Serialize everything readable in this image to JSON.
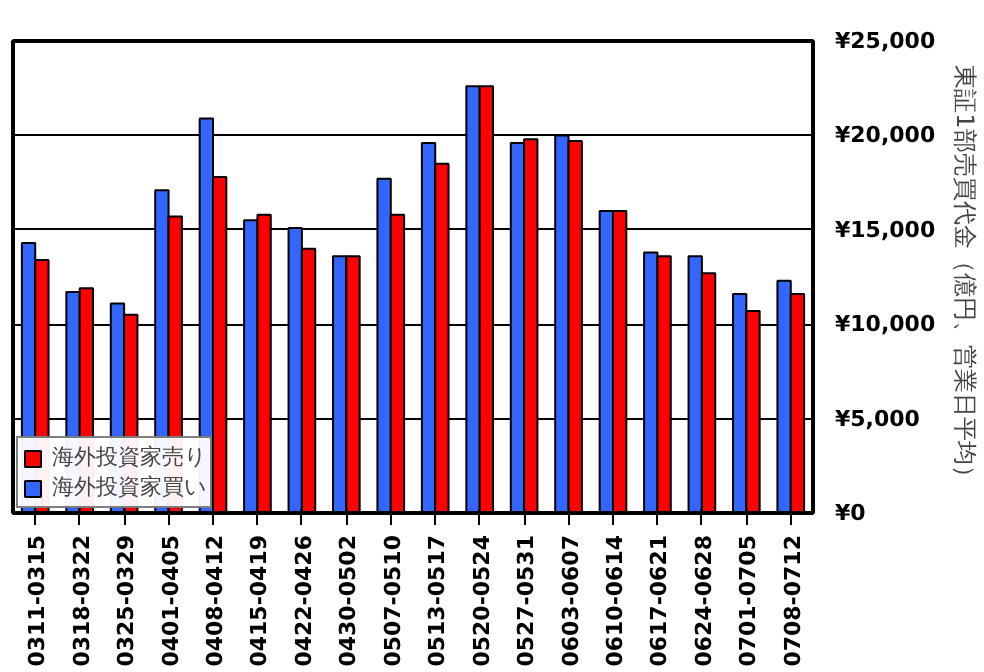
{
  "chart_data": {
    "type": "bar",
    "ylabel": "東証1部売買代金（億円、営業日平均）",
    "categories": [
      "0311-0315",
      "0318-0322",
      "0325-0329",
      "0401-0405",
      "0408-0412",
      "0415-0419",
      "0422-0426",
      "0430-0502",
      "0507-0510",
      "0513-0517",
      "0520-0524",
      "0527-0531",
      "0603-0607",
      "0610-0614",
      "0617-0621",
      "0624-0628",
      "0701-0705",
      "0708-0712"
    ],
    "series": [
      {
        "name": "海外投資家買い",
        "color": "#3366ff",
        "values": [
          14300,
          11700,
          11100,
          17100,
          20900,
          15500,
          15100,
          13600,
          17700,
          19600,
          22600,
          19600,
          20000,
          16000,
          13800,
          13600,
          11600,
          12300
        ]
      },
      {
        "name": "海外投資家売り",
        "color": "#ff0000",
        "values": [
          13400,
          11900,
          10500,
          15700,
          17800,
          15800,
          14000,
          13600,
          15800,
          18500,
          22600,
          19800,
          19700,
          16000,
          13600,
          12700,
          10700,
          11600
        ]
      }
    ],
    "ylim": [
      0,
      25000
    ],
    "yticks": [
      {
        "value": 0,
        "label": "¥0"
      },
      {
        "value": 5000,
        "label": "¥5,000"
      },
      {
        "value": 10000,
        "label": "¥10,000"
      },
      {
        "value": 15000,
        "label": "¥15,000"
      },
      {
        "value": 20000,
        "label": "¥20,000"
      },
      {
        "value": 25000,
        "label": "¥25,000"
      }
    ],
    "grid": "y",
    "legend": "bottom left"
  }
}
